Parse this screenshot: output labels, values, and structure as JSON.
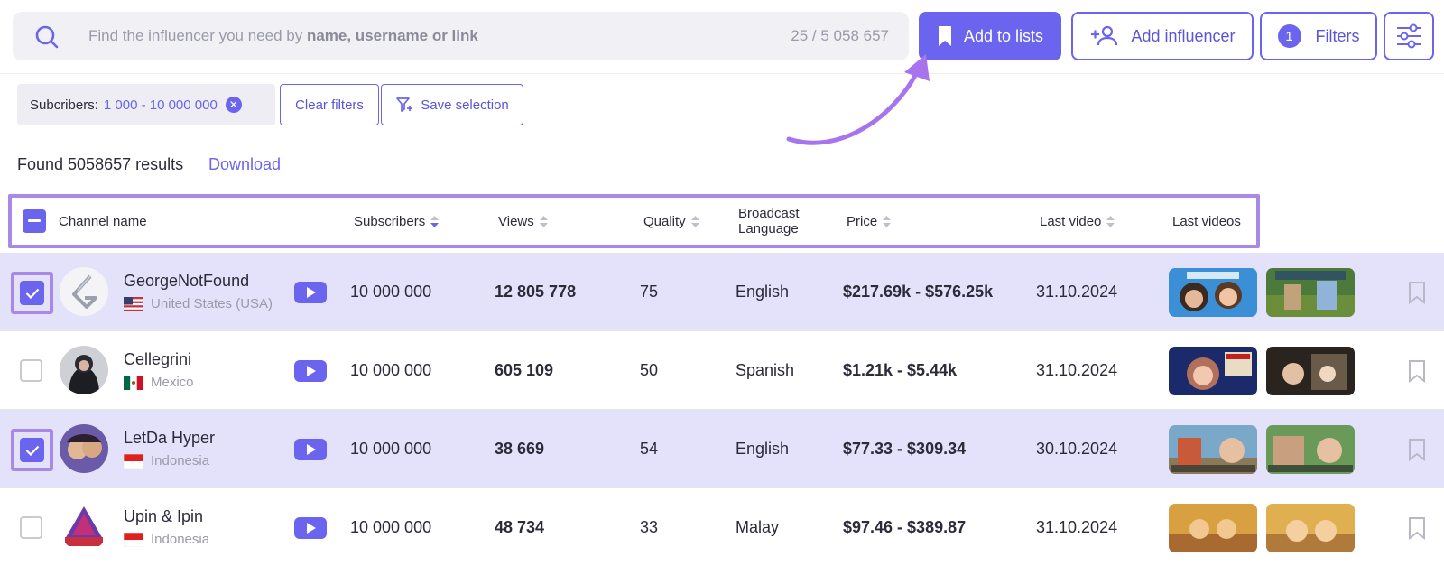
{
  "search": {
    "placeholder_prefix": "Find the influencer you need by ",
    "placeholder_bold": "name, username or link",
    "count": "25 / 5 058 657"
  },
  "toolbar": {
    "add_to_lists": "Add to lists",
    "add_influencer": "Add influencer",
    "filters_label": "Filters",
    "filters_count": "1"
  },
  "chips": {
    "subscribers_label": "Subcribers:",
    "subscribers_value": "1 000 - 10 000 000",
    "clear_filters": "Clear filters",
    "save_selection": "Save selection"
  },
  "results": {
    "found_text": "Found 5058657 results",
    "download": "Download"
  },
  "table": {
    "headers": {
      "channel": "Channel name",
      "subscribers": "Subscribers",
      "views": "Views",
      "quality": "Quality",
      "broadcast_line1": "Broadcast",
      "broadcast_line2": "Language",
      "price": "Price",
      "last_video": "Last video",
      "last_videos": "Last videos"
    },
    "rows": [
      {
        "name": "GeorgeNotFound",
        "country": "United States (USA)",
        "subscribers": "10 000 000",
        "views": "12 805 778",
        "quality": "75",
        "language": "English",
        "price": "$217.69k - $576.25k",
        "last_video": "31.10.2024",
        "selected": true
      },
      {
        "name": "Cellegrini",
        "country": "Mexico",
        "subscribers": "10 000 000",
        "views": "605 109",
        "quality": "50",
        "language": "Spanish",
        "price": "$1.21k - $5.44k",
        "last_video": "31.10.2024",
        "selected": false
      },
      {
        "name": "LetDa Hyper",
        "country": "Indonesia",
        "subscribers": "10 000 000",
        "views": "38 669",
        "quality": "54",
        "language": "English",
        "price": "$77.33 - $309.34",
        "last_video": "30.10.2024",
        "selected": true
      },
      {
        "name": "Upin & Ipin",
        "country": "Indonesia",
        "subscribers": "10 000 000",
        "views": "48 734",
        "quality": "33",
        "language": "Malay",
        "price": "$97.46 - $389.87",
        "last_video": "31.10.2024",
        "selected": false
      }
    ]
  },
  "colors": {
    "accent": "#6a64ee",
    "highlight": "#a88ae6",
    "selected_row": "#e4e2fa"
  }
}
